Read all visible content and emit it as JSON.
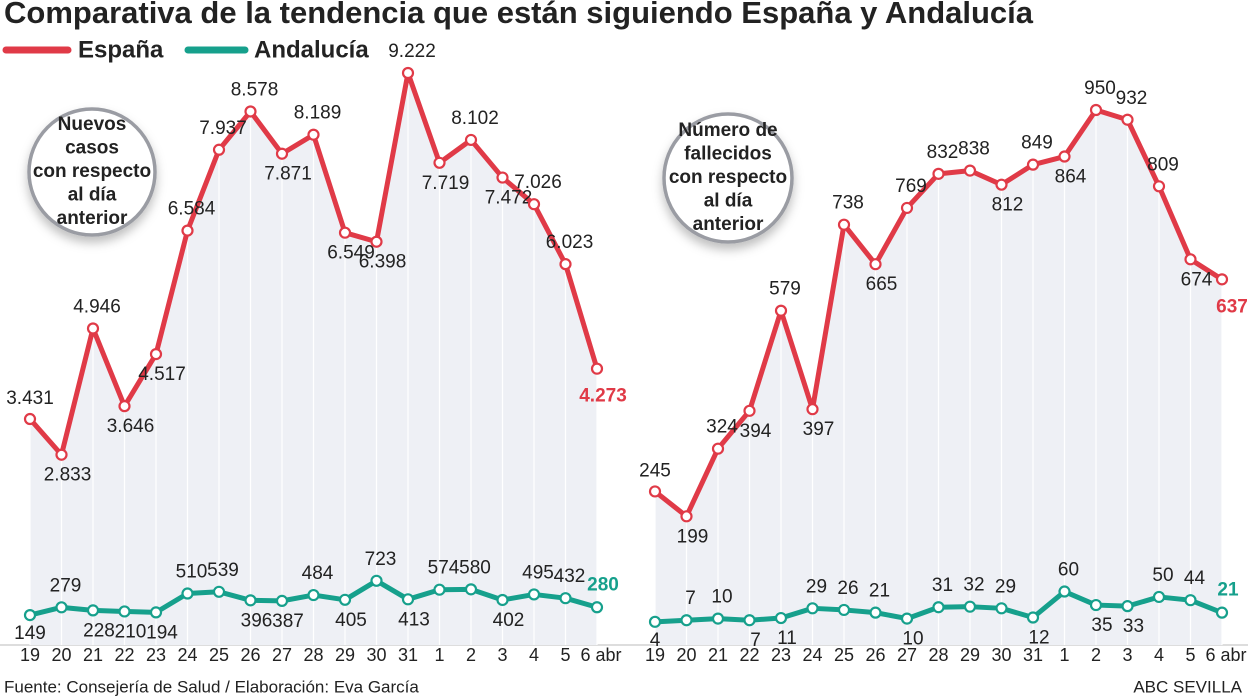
{
  "title": "Comparativa de la tendencia que están siguiendo España y Andalucía",
  "source": "Fuente: Consejería de Salud / Elaboración: Eva García",
  "credit": "ABC SEVILLA",
  "chart_data": [
    {
      "type": "line",
      "annotation": {
        "highlight": [
          "Nuevos",
          "casos"
        ],
        "text": [
          "con respecto",
          "al día",
          "anterior"
        ]
      },
      "categories": [
        "19",
        "20",
        "21",
        "22",
        "23",
        "24",
        "25",
        "26",
        "27",
        "28",
        "29",
        "30",
        "31",
        "1",
        "2",
        "3",
        "4",
        "5",
        "6 abr"
      ],
      "series": [
        {
          "name": "España",
          "color": "#e03a47",
          "values": [
            3431,
            2833,
            4946,
            3646,
            4517,
            6584,
            7937,
            8578,
            7871,
            8189,
            6549,
            6398,
            9222,
            7719,
            8102,
            7472,
            7026,
            6023,
            4273
          ],
          "value_labels": [
            "3.431",
            "2.833",
            "4.946",
            "3.646",
            "4.517",
            "6.584",
            "7.937",
            "8.578",
            "7.871",
            "8.189",
            "6.549",
            "6.398",
            "9.222",
            "7.719",
            "8.102",
            "7.472",
            "7.026",
            "6.023",
            "4.273"
          ]
        },
        {
          "name": "Andalucía",
          "color": "#16a08c",
          "values": [
            149,
            279,
            228,
            210,
            194,
            510,
            539,
            396,
            387,
            484,
            405,
            723,
            413,
            574,
            580,
            402,
            495,
            432,
            280
          ]
        }
      ]
    },
    {
      "type": "line",
      "annotation": {
        "highlight": [
          "Número de",
          "fallecidos"
        ],
        "text": [
          "con respecto",
          "al día",
          "anterior"
        ]
      },
      "categories": [
        "19",
        "20",
        "21",
        "22",
        "23",
        "24",
        "25",
        "26",
        "27",
        "28",
        "29",
        "30",
        "31",
        "1",
        "2",
        "3",
        "4",
        "5",
        "6 abr"
      ],
      "series": [
        {
          "name": "España",
          "color": "#e03a47",
          "values": [
            245,
            199,
            324,
            394,
            579,
            397,
            738,
            665,
            769,
            832,
            838,
            812,
            849,
            864,
            950,
            932,
            809,
            674,
            637
          ]
        },
        {
          "name": "Andalucía",
          "color": "#16a08c",
          "values": [
            4,
            7,
            10,
            7,
            11,
            29,
            26,
            21,
            10,
            31,
            32,
            29,
            12,
            60,
            35,
            33,
            50,
            44,
            21
          ]
        }
      ]
    }
  ]
}
